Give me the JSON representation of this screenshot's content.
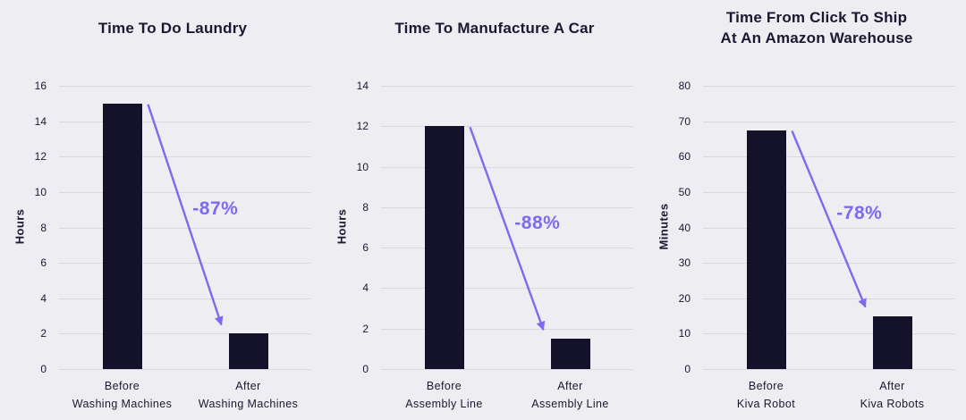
{
  "colors": {
    "background": "#eeedf1",
    "bar": "#14122b",
    "text": "#1b1831",
    "gridline": "#d9d8dd",
    "accent": "#7c6bee"
  },
  "chart_data": [
    {
      "type": "bar",
      "title_lines": [
        "Time To Do Laundry"
      ],
      "ylabel": "Hours",
      "ylim": [
        0,
        16
      ],
      "yticks": [
        0,
        2,
        4,
        6,
        8,
        10,
        12,
        14,
        16
      ],
      "categories": [
        "Before Washing Machines",
        "After Washing Machines"
      ],
      "category_lines": [
        [
          "Before",
          "Washing Machines"
        ],
        [
          "After",
          "Washing Machines"
        ]
      ],
      "values": [
        15,
        2
      ],
      "annotation": "-87%",
      "grid": true,
      "legend": false
    },
    {
      "type": "bar",
      "title_lines": [
        "Time To Manufacture A Car"
      ],
      "ylabel": "Hours",
      "ylim": [
        0,
        14
      ],
      "yticks": [
        0,
        2,
        4,
        6,
        8,
        10,
        12,
        14
      ],
      "categories": [
        "Before Assembly Line",
        "After Assembly Line"
      ],
      "category_lines": [
        [
          "Before",
          "Assembly Line"
        ],
        [
          "After",
          "Assembly Line"
        ]
      ],
      "values": [
        12,
        1.5
      ],
      "annotation": "-88%",
      "grid": true,
      "legend": false
    },
    {
      "type": "bar",
      "title_lines": [
        "Time From Click To Ship",
        "At An Amazon Warehouse"
      ],
      "ylabel": "Minutes",
      "ylim": [
        0,
        80
      ],
      "yticks": [
        0,
        10,
        20,
        30,
        40,
        50,
        60,
        70,
        80
      ],
      "categories": [
        "Before Kiva Robot",
        "After Kiva Robots"
      ],
      "category_lines": [
        [
          "Before",
          "Kiva Robot"
        ],
        [
          "After",
          "Kiva Robots"
        ]
      ],
      "values": [
        67.5,
        15
      ],
      "annotation": "-78%",
      "grid": true,
      "legend": false
    }
  ]
}
